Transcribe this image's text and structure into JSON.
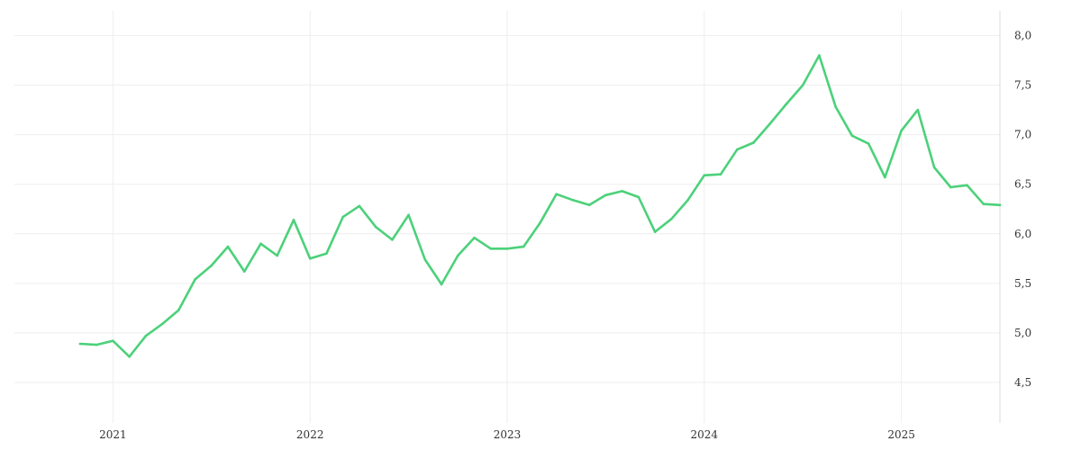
{
  "chart_data": {
    "type": "line",
    "title": "",
    "xlabel": "",
    "ylabel": "",
    "ylim": [
      4.2,
      8.25
    ],
    "y_ticks": [
      "4,5",
      "5,0",
      "5,5",
      "6,0",
      "6,5",
      "7,0",
      "7,5",
      "8,0"
    ],
    "y_tick_values": [
      4.5,
      5.0,
      5.5,
      6.0,
      6.5,
      7.0,
      7.5,
      8.0
    ],
    "x_ticks": [
      "2021",
      "2022",
      "2023",
      "2024",
      "2025"
    ],
    "x_tick_values": [
      "2021-01",
      "2022-01",
      "2023-01",
      "2024-01",
      "2025-01"
    ],
    "xlim": [
      "2020-07",
      "2025-07"
    ],
    "y_axis_position": "right",
    "grid": true,
    "line_color": "#4cd17a",
    "series": [
      {
        "x": [
          "2020-11",
          "2020-12",
          "2021-01",
          "2021-02",
          "2021-03",
          "2021-04",
          "2021-05",
          "2021-06",
          "2021-07",
          "2021-08",
          "2021-09",
          "2021-10",
          "2021-11",
          "2021-12",
          "2022-01",
          "2022-02",
          "2022-03",
          "2022-04",
          "2022-05",
          "2022-06",
          "2022-07",
          "2022-08",
          "2022-09",
          "2022-10",
          "2022-11",
          "2022-12",
          "2023-01",
          "2023-02",
          "2023-03",
          "2023-04",
          "2023-05",
          "2023-06",
          "2023-07",
          "2023-08",
          "2023-09",
          "2023-10",
          "2023-11",
          "2023-12",
          "2024-01",
          "2024-02",
          "2024-03",
          "2024-04",
          "2024-05",
          "2024-06",
          "2024-07",
          "2024-08",
          "2024-09",
          "2024-10",
          "2024-11",
          "2024-12",
          "2025-01",
          "2025-02",
          "2025-03",
          "2025-04",
          "2025-05",
          "2025-06",
          "2025-07"
        ],
        "values": [
          4.89,
          4.88,
          4.92,
          4.76,
          4.97,
          5.09,
          5.23,
          5.54,
          5.68,
          5.87,
          5.62,
          5.9,
          5.78,
          6.14,
          5.75,
          5.8,
          6.17,
          6.28,
          6.07,
          5.94,
          6.19,
          5.74,
          5.49,
          5.78,
          5.96,
          5.85,
          5.85,
          5.87,
          6.11,
          6.4,
          6.34,
          6.29,
          6.39,
          6.43,
          6.37,
          6.02,
          6.15,
          6.34,
          6.59,
          6.6,
          6.85,
          6.92,
          7.11,
          7.31,
          7.5,
          7.8,
          7.28,
          6.99,
          6.91,
          6.57,
          7.04,
          7.25,
          6.67,
          6.47,
          6.49,
          6.3,
          6.29
        ]
      }
    ]
  }
}
